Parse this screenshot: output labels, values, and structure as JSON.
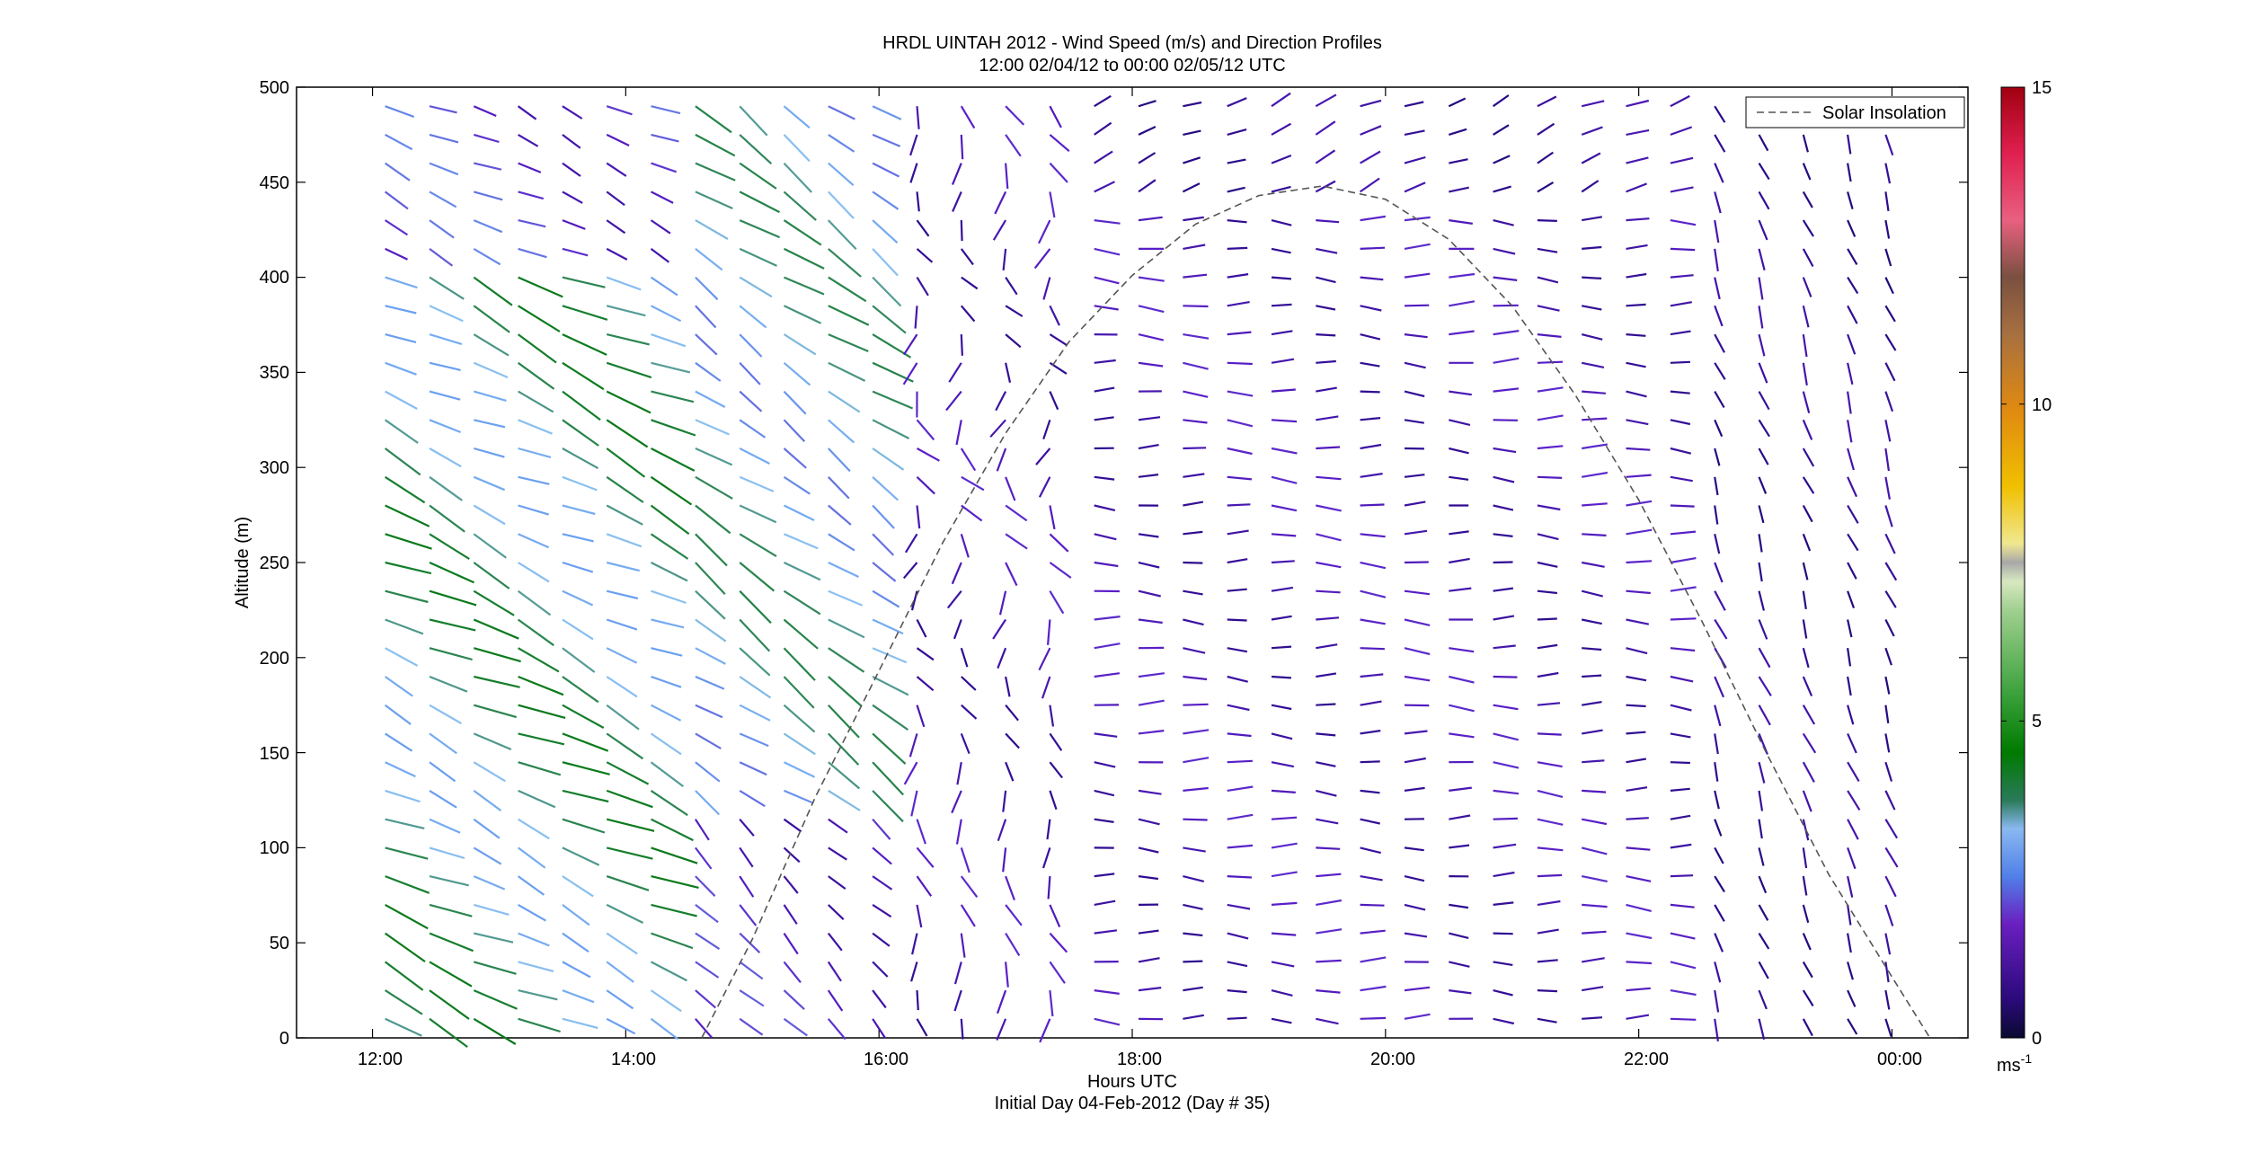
{
  "chart_data": {
    "type": "wind-vector-profile",
    "title": "HRDL UINTAH 2012 - Wind Speed (m/s) and Direction Profiles",
    "subtitle": "12:00 02/04/12 to 00:00 02/05/12  UTC",
    "xlabel": "Hours UTC",
    "xlabel2": "Initial Day 04-Feb-2012 (Day # 35)",
    "ylabel": "Altitude (m)",
    "xlim": [
      11.4,
      24.6
    ],
    "ylim": [
      0,
      500
    ],
    "xticks": [
      {
        "value": 12,
        "label": "12:00"
      },
      {
        "value": 14,
        "label": "14:00"
      },
      {
        "value": 16,
        "label": "16:00"
      },
      {
        "value": 18,
        "label": "18:00"
      },
      {
        "value": 20,
        "label": "20:00"
      },
      {
        "value": 22,
        "label": "22:00"
      },
      {
        "value": 24,
        "label": "00:00"
      }
    ],
    "yticks": [
      0,
      50,
      100,
      150,
      200,
      250,
      300,
      350,
      400,
      450,
      500
    ],
    "legend": {
      "label": "Solar Insolation",
      "placement": "top-right",
      "style": "dashed",
      "color": "#555555"
    },
    "colorbar": {
      "min": 0,
      "max": 15,
      "ticks": [
        0,
        5,
        10,
        15
      ],
      "unit": "ms",
      "unit_exp": "-1"
    },
    "solar_insolation": {
      "x": [
        14.6,
        15.0,
        15.5,
        16.0,
        16.5,
        17.0,
        17.5,
        18.0,
        18.5,
        19.0,
        19.5,
        20.0,
        20.5,
        21.0,
        21.5,
        22.0,
        22.5,
        23.0,
        23.5,
        24.0,
        24.3
      ],
      "y": [
        0,
        52,
        127,
        193,
        260,
        318,
        366,
        401,
        428,
        443,
        448,
        441,
        420,
        385,
        338,
        283,
        219,
        151,
        86,
        32,
        0
      ]
    },
    "wind_grid": {
      "times": [
        12.1,
        12.45,
        12.8,
        13.15,
        13.5,
        13.85,
        14.2,
        14.55,
        14.9,
        15.25,
        15.6,
        15.95,
        16.3,
        16.65,
        17.0,
        17.35,
        17.7,
        18.05,
        18.4,
        18.75,
        19.1,
        19.45,
        19.8,
        20.15,
        20.5,
        20.85,
        21.2,
        21.55,
        21.9,
        22.25,
        22.6,
        22.95,
        23.3,
        23.65,
        23.95
      ],
      "altitude_start": 10,
      "altitude_step": 15,
      "levels": 33
    },
    "wind_regimes": [
      {
        "t_start": 12.0,
        "t_end": 14.3,
        "dir_deg": 295,
        "speed_ms": 4.3,
        "note": "NW flow, green/blue"
      },
      {
        "t_start": 14.3,
        "t_end": 16.3,
        "dir_deg": 305,
        "speed_ms": 3.8,
        "note": "NW flow aloft, weakening below"
      },
      {
        "t_start": 16.3,
        "t_end": 17.7,
        "dir_deg": 350,
        "speed_ms": 1.6,
        "note": "light, variable northerly"
      },
      {
        "t_start": 17.7,
        "t_end": 22.3,
        "dir_deg": 272,
        "speed_ms": 1.6,
        "note": "westerly, purple"
      },
      {
        "t_start": 22.3,
        "t_end": 24.0,
        "dir_deg": 340,
        "speed_ms": 1.2,
        "note": "light NNW"
      }
    ]
  }
}
